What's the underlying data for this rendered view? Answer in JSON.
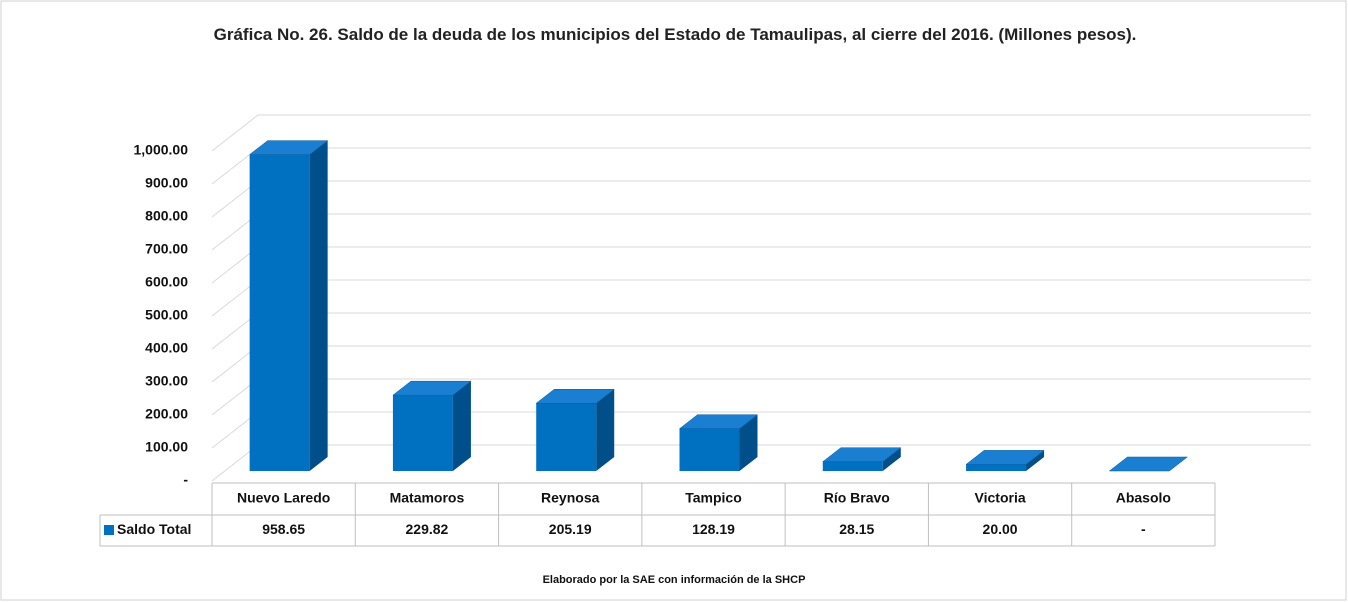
{
  "chart_data": {
    "type": "bar3d",
    "title": "Gráfica No. 26. Saldo de la deuda de los municipios del Estado de  Tamaulipas, al cierre del 2016. (Millones pesos).",
    "categories": [
      "Nuevo Laredo",
      "Matamoros",
      "Reynosa",
      "Tampico",
      "Río Bravo",
      "Victoria",
      "Abasolo"
    ],
    "series": [
      {
        "name": "Saldo Total",
        "color": "#0070c0",
        "values": [
          958.65,
          229.82,
          205.19,
          128.19,
          28.15,
          20.0,
          0
        ],
        "value_labels": [
          "958.65",
          "229.82",
          "205.19",
          "128.19",
          "28.15",
          "20.00",
          "-"
        ]
      }
    ],
    "ylim": [
      0,
      1000
    ],
    "yticks": [
      {
        "value": 0,
        "label": "-"
      },
      {
        "value": 100,
        "label": "100.00"
      },
      {
        "value": 200,
        "label": "200.00"
      },
      {
        "value": 300,
        "label": "300.00"
      },
      {
        "value": 400,
        "label": "400.00"
      },
      {
        "value": 500,
        "label": "500.00"
      },
      {
        "value": 600,
        "label": "600.00"
      },
      {
        "value": 700,
        "label": "700.00"
      },
      {
        "value": 800,
        "label": "800.00"
      },
      {
        "value": 900,
        "label": "900.00"
      },
      {
        "value": 1000,
        "label": "1,000.00"
      }
    ],
    "grid": true,
    "source": "Elaborado por la SAE con información de  la SHCP"
  }
}
